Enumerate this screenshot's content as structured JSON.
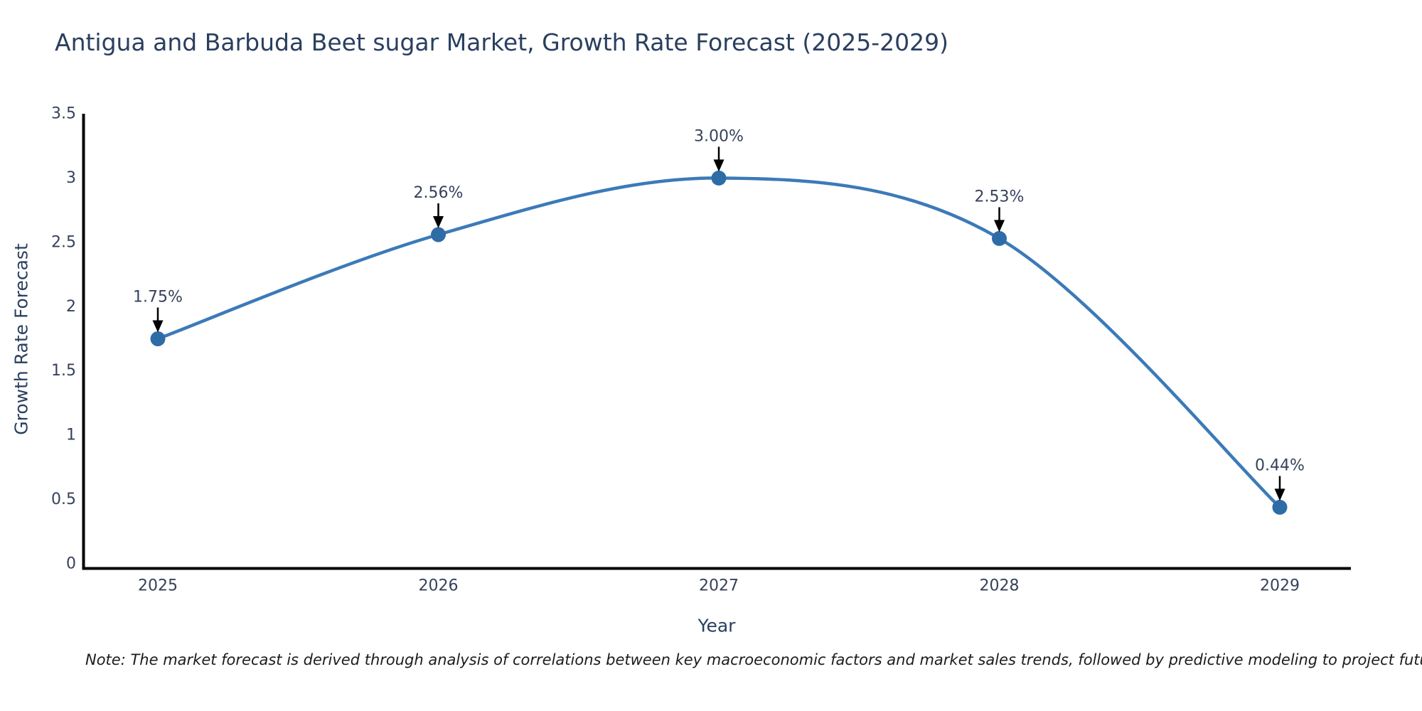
{
  "title": {
    "text": "Antigua and Barbuda Beet sugar Market, Growth Rate Forecast (2025-2029)",
    "color": "#2a3f5f"
  },
  "note": {
    "text": "Note: The market forecast is derived through analysis of correlations between key macroeconomic factors and market sales trends, followed by predictive modeling to project future sales"
  },
  "chart_data": {
    "type": "line",
    "title": "Antigua and Barbuda Beet sugar Market, Growth Rate Forecast (2025-2029)",
    "xlabel": "Year",
    "ylabel": "Growth Rate Forecast",
    "categories": [
      "2025",
      "2026",
      "2027",
      "2028",
      "2029"
    ],
    "values": [
      1.75,
      2.56,
      3.0,
      2.53,
      0.44
    ],
    "labels": [
      "1.75%",
      "2.56%",
      "3.00%",
      "2.53%",
      "0.44%"
    ],
    "series": [
      {
        "name": "Growth Rate Forecast",
        "values": [
          1.75,
          2.56,
          3.0,
          2.53,
          0.44
        ]
      }
    ],
    "ylim": [
      0,
      3.5
    ],
    "yticks": [
      0,
      0.5,
      1,
      1.5,
      2,
      2.5,
      3,
      3.5
    ],
    "line_shape": "spline",
    "grid": false,
    "legend_position": "none",
    "line_color": "#3c7ab8",
    "marker_color": "#2e6ca8",
    "axis_color": "#000000",
    "tick_color": "#36425a",
    "annotation_text_color": "#36425a",
    "annotation_arrow_color": "#000000",
    "background_color": "#ffffff"
  }
}
